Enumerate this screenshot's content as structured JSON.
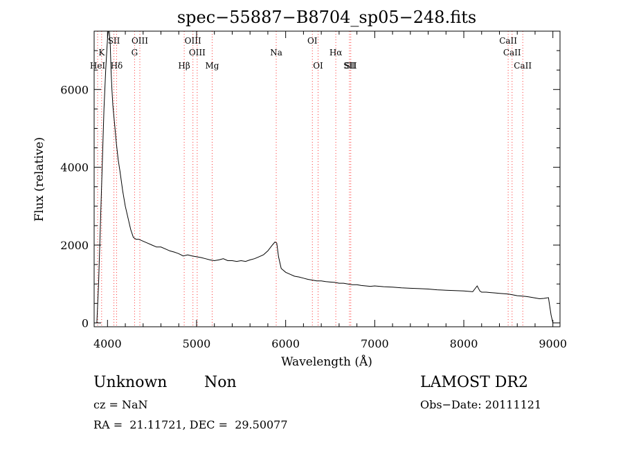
{
  "chart_data": {
    "type": "line",
    "title": "spec−55887−B8704_sp05−248.fits",
    "xlabel": "Wavelength (Å)",
    "ylabel": "Flux (relative)",
    "xlim": [
      3850,
      9080
    ],
    "ylim": [
      -100,
      7500
    ],
    "xticks": [
      4000,
      5000,
      6000,
      7000,
      8000,
      9000
    ],
    "yticks": [
      0,
      2000,
      4000,
      6000
    ],
    "grid": false,
    "line_color": "#000000",
    "marker_color": "#ff3333",
    "series": [
      {
        "values_desc": "spectrum",
        "x": [
          3880,
          3900,
          3920,
          3940,
          3960,
          3980,
          4000,
          4010,
          4020,
          4030,
          4040,
          4050,
          4060,
          4080,
          4100,
          4120,
          4140,
          4170,
          4200,
          4230,
          4260,
          4290,
          4320,
          4350,
          4400,
          4450,
          4500,
          4550,
          4600,
          4650,
          4700,
          4750,
          4800,
          4850,
          4900,
          4950,
          5000,
          5050,
          5100,
          5150,
          5200,
          5250,
          5300,
          5350,
          5400,
          5450,
          5500,
          5550,
          5600,
          5650,
          5700,
          5750,
          5800,
          5850,
          5880,
          5900,
          5920,
          5950,
          6000,
          6050,
          6100,
          6150,
          6200,
          6250,
          6300,
          6350,
          6400,
          6450,
          6500,
          6550,
          6600,
          6650,
          6700,
          6750,
          6800,
          6850,
          6900,
          6950,
          7000,
          7100,
          7200,
          7300,
          7400,
          7500,
          7600,
          7700,
          7800,
          7900,
          8000,
          8100,
          8150,
          8180,
          8200,
          8250,
          8300,
          8350,
          8400,
          8450,
          8500,
          8550,
          8600,
          8650,
          8700,
          8750,
          8800,
          8850,
          8900,
          8950,
          8980,
          9000
        ],
        "y": [
          0,
          1000,
          2500,
          4000,
          5500,
          6500,
          7300,
          7600,
          7600,
          7200,
          6500,
          6000,
          5600,
          5100,
          4600,
          4200,
          3900,
          3400,
          3000,
          2700,
          2400,
          2200,
          2150,
          2150,
          2100,
          2050,
          2000,
          1950,
          1950,
          1900,
          1850,
          1820,
          1780,
          1720,
          1750,
          1720,
          1700,
          1680,
          1650,
          1620,
          1600,
          1620,
          1650,
          1600,
          1600,
          1580,
          1600,
          1580,
          1620,
          1650,
          1700,
          1750,
          1850,
          2000,
          2080,
          2050,
          1700,
          1400,
          1300,
          1250,
          1200,
          1180,
          1150,
          1120,
          1100,
          1080,
          1080,
          1060,
          1050,
          1040,
          1020,
          1020,
          1000,
          980,
          980,
          960,
          950,
          940,
          950,
          930,
          920,
          900,
          890,
          880,
          870,
          850,
          840,
          830,
          820,
          800,
          950,
          820,
          790,
          790,
          780,
          770,
          760,
          750,
          740,
          720,
          700,
          690,
          680,
          660,
          640,
          620,
          630,
          650,
          200,
          0
        ]
      }
    ],
    "annotations": [
      {
        "label": "K",
        "x": 3934
      },
      {
        "label": "HeI",
        "x": 3889
      },
      {
        "label": "SII",
        "x": 4072
      },
      {
        "label": "Hδ",
        "x": 4102
      },
      {
        "label": "OIII",
        "x": 4363
      },
      {
        "label": "G",
        "x": 4304
      },
      {
        "label": "OIII",
        "x": 4959
      },
      {
        "label": "OIII",
        "x": 5007
      },
      {
        "label": "Hβ",
        "x": 4861
      },
      {
        "label": "Mg",
        "x": 5175
      },
      {
        "label": "Na",
        "x": 5894
      },
      {
        "label": "OI",
        "x": 6300
      },
      {
        "label": "OI",
        "x": 6364
      },
      {
        "label": "Hα",
        "x": 6563
      },
      {
        "label": "SII",
        "x": 6716
      },
      {
        "label": "SII",
        "x": 6731
      },
      {
        "label": "CaII",
        "x": 8498
      },
      {
        "label": "CaII",
        "x": 8542
      },
      {
        "label": "CaII",
        "x": 8662
      }
    ]
  },
  "info": {
    "object_class": "Unknown",
    "subclass": "Non",
    "survey": "LAMOST DR2",
    "cz": "cz = NaN",
    "obs_date": "Obs−Date: 20111121",
    "coords": "RA =  21.11721, DEC =  29.50077"
  }
}
